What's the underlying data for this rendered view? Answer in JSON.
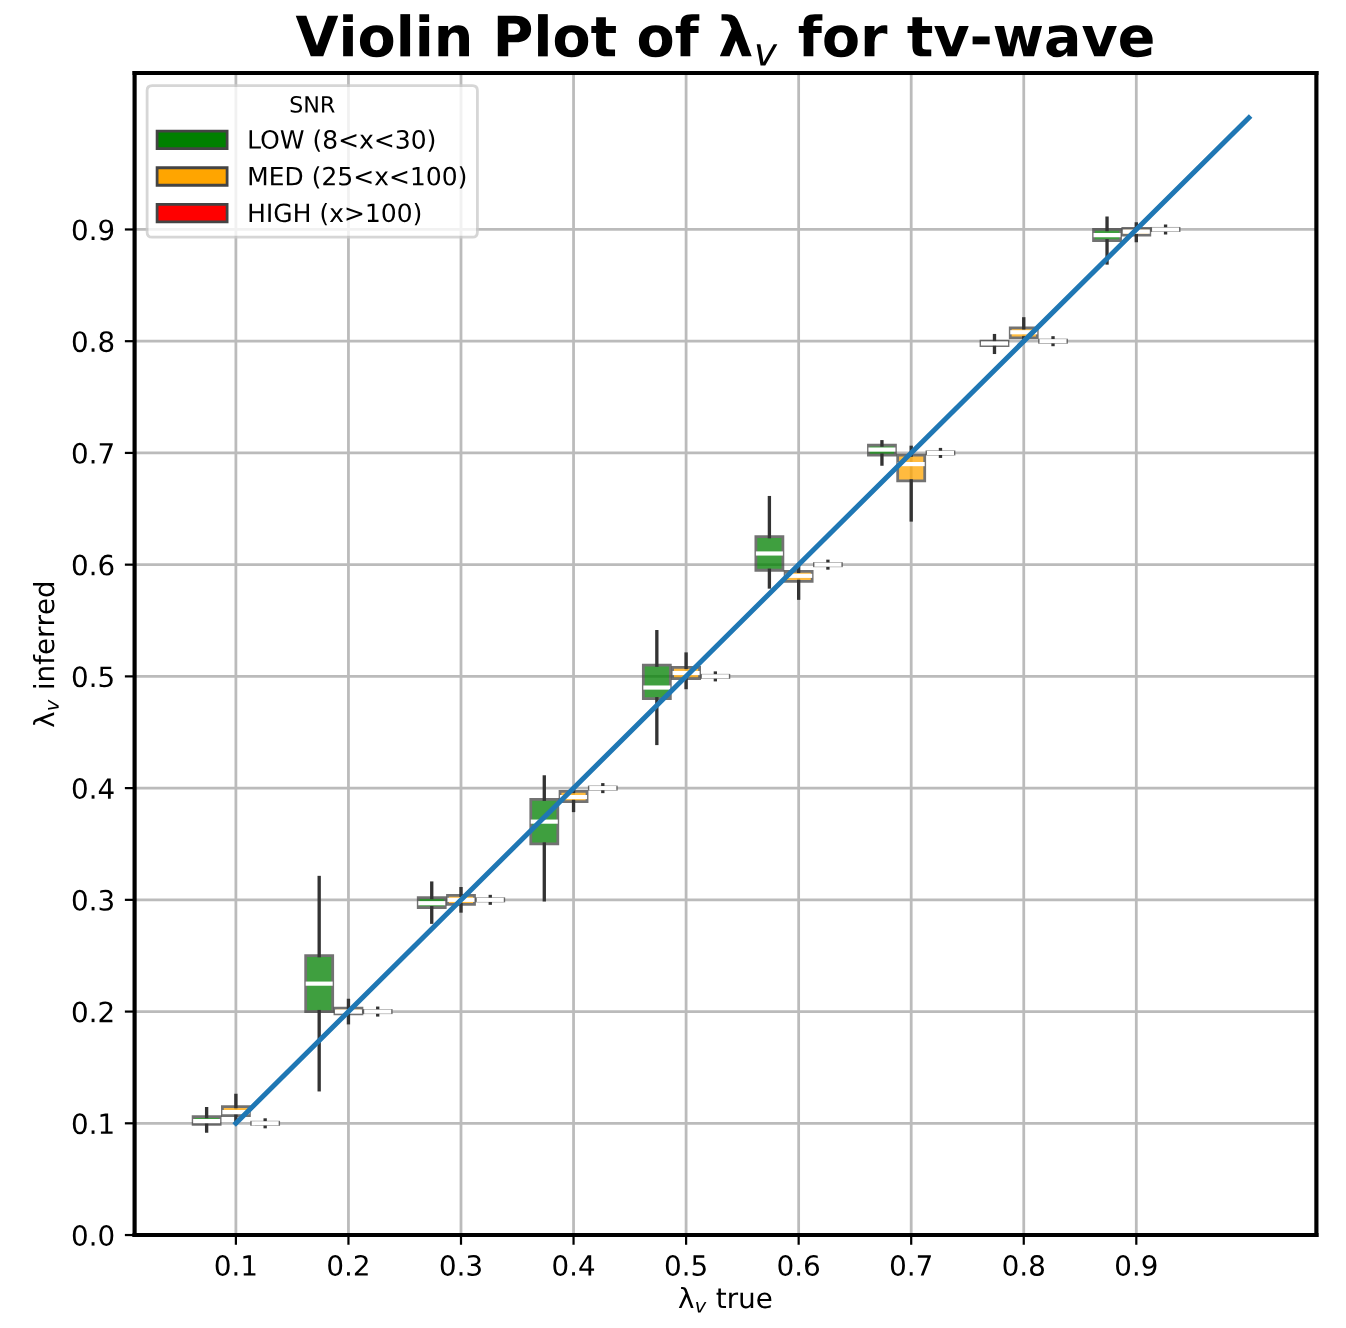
{
  "chart_data": {
    "type": "box",
    "title": "Violin Plot of λ$_{v}$ for tv-wave",
    "xlabel": "λ$_{v}$ true",
    "ylabel": "λ$_{v}$ inferred",
    "legend_title": "SNR",
    "xlim": [
      0.01,
      1.06
    ],
    "xticks": [
      0.1,
      0.2,
      0.3,
      0.4,
      0.5,
      0.6,
      0.7,
      0.8,
      0.9
    ],
    "ylim": [
      0,
      1.04
    ],
    "yticks": [
      {
        "value": 0,
        "label": "0.0"
      },
      0.1,
      0.2,
      0.3,
      0.4,
      0.5,
      0.6,
      0.7,
      0.8,
      0.9
    ],
    "grid": true,
    "legend": "top left",
    "series": [
      {
        "name": "LOW (8<x<30)",
        "color": "#008000",
        "x": [
          0.1,
          0.2,
          0.3,
          0.4,
          0.5,
          0.6,
          0.7,
          0.8,
          0.9
        ],
        "boxes": [
          {
            "low": 0.093,
            "q1": 0.099,
            "median": 0.102,
            "q3": 0.106,
            "high": 0.113
          },
          {
            "low": 0.13,
            "q1": 0.2,
            "median": 0.225,
            "q3": 0.25,
            "high": 0.32
          },
          {
            "low": 0.28,
            "q1": 0.293,
            "median": 0.297,
            "q3": 0.302,
            "high": 0.315
          },
          {
            "low": 0.3,
            "q1": 0.35,
            "median": 0.37,
            "q3": 0.39,
            "high": 0.41
          },
          {
            "low": 0.44,
            "q1": 0.48,
            "median": 0.49,
            "q3": 0.51,
            "high": 0.54
          },
          {
            "low": 0.58,
            "q1": 0.595,
            "median": 0.61,
            "q3": 0.625,
            "high": 0.66
          },
          {
            "low": 0.69,
            "q1": 0.698,
            "median": 0.703,
            "q3": 0.707,
            "high": 0.71
          },
          {
            "low": 0.79,
            "q1": 0.796,
            "median": 0.798,
            "q3": 0.8,
            "high": 0.805
          },
          {
            "low": 0.87,
            "q1": 0.89,
            "median": 0.895,
            "q3": 0.9,
            "high": 0.91
          }
        ]
      },
      {
        "name": "MED (25<x<100)",
        "color": "#ffa500",
        "x": [
          0.1,
          0.2,
          0.3,
          0.4,
          0.5,
          0.6,
          0.7,
          0.8,
          0.9
        ],
        "boxes": [
          {
            "low": 0.1,
            "q1": 0.107,
            "median": 0.11,
            "q3": 0.115,
            "high": 0.125
          },
          {
            "low": 0.19,
            "q1": 0.198,
            "median": 0.2,
            "q3": 0.203,
            "high": 0.21
          },
          {
            "low": 0.29,
            "q1": 0.296,
            "median": 0.3,
            "q3": 0.304,
            "high": 0.31
          },
          {
            "low": 0.38,
            "q1": 0.388,
            "median": 0.392,
            "q3": 0.397,
            "high": 0.4
          },
          {
            "low": 0.49,
            "q1": 0.498,
            "median": 0.503,
            "q3": 0.508,
            "high": 0.52
          },
          {
            "low": 0.57,
            "q1": 0.585,
            "median": 0.59,
            "q3": 0.594,
            "high": 0.6
          },
          {
            "low": 0.64,
            "q1": 0.675,
            "median": 0.69,
            "q3": 0.698,
            "high": 0.705
          },
          {
            "low": 0.8,
            "q1": 0.803,
            "median": 0.808,
            "q3": 0.812,
            "high": 0.82
          },
          {
            "low": 0.89,
            "q1": 0.895,
            "median": 0.898,
            "q3": 0.901,
            "high": 0.905
          }
        ]
      },
      {
        "name": "HIGH (x>100)",
        "color": "#ff0000",
        "x": [
          0.1,
          0.2,
          0.3,
          0.4,
          0.5,
          0.6,
          0.7,
          0.8,
          0.9
        ],
        "boxes": [
          {
            "low": 0.097,
            "q1": 0.099,
            "median": 0.1,
            "q3": 0.101,
            "high": 0.103
          },
          {
            "low": 0.197,
            "q1": 0.199,
            "median": 0.2,
            "q3": 0.201,
            "high": 0.203
          },
          {
            "low": 0.297,
            "q1": 0.299,
            "median": 0.3,
            "q3": 0.301,
            "high": 0.303
          },
          {
            "low": 0.397,
            "q1": 0.399,
            "median": 0.4,
            "q3": 0.401,
            "high": 0.403
          },
          {
            "low": 0.497,
            "q1": 0.499,
            "median": 0.5,
            "q3": 0.501,
            "high": 0.503
          },
          {
            "low": 0.597,
            "q1": 0.599,
            "median": 0.6,
            "q3": 0.601,
            "high": 0.603
          },
          {
            "low": 0.697,
            "q1": 0.699,
            "median": 0.7,
            "q3": 0.701,
            "high": 0.703
          },
          {
            "low": 0.797,
            "q1": 0.799,
            "median": 0.8,
            "q3": 0.801,
            "high": 0.803
          },
          {
            "low": 0.897,
            "q1": 0.899,
            "median": 0.9,
            "q3": 0.901,
            "high": 0.903
          }
        ]
      },
      {
        "type": "line",
        "color": "#1f77b4",
        "x": [
          0.1,
          1.0
        ],
        "values": [
          0.1,
          1.0
        ]
      }
    ]
  }
}
